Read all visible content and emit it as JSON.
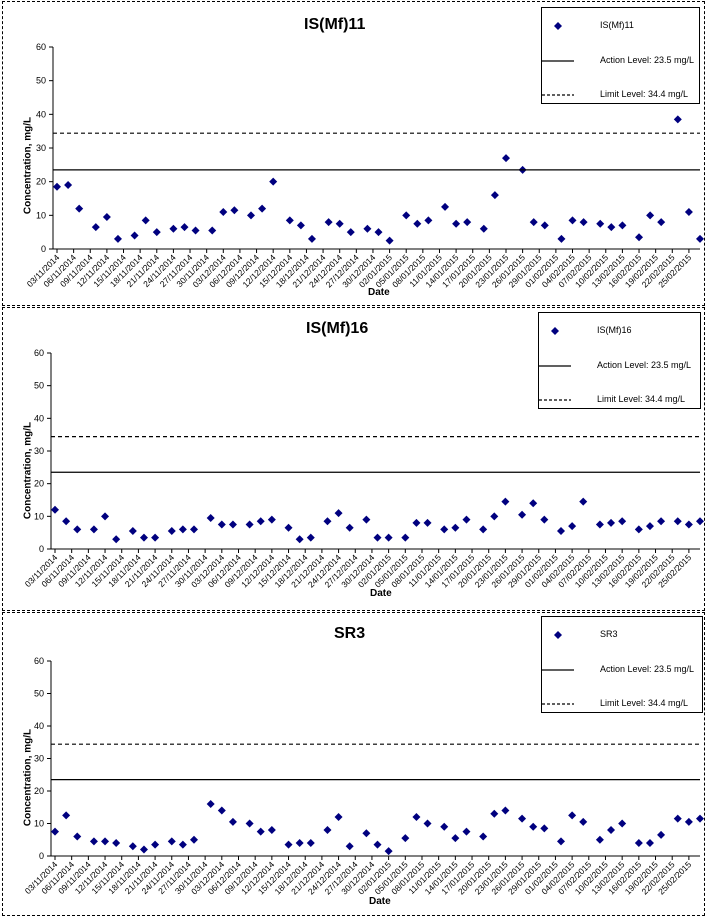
{
  "chart_data": [
    {
      "type": "scatter",
      "title": "IS(Mf)11",
      "xlabel": "Date",
      "ylabel": "Concentration, mg/L",
      "ylim": [
        0,
        60
      ],
      "yticks": [
        0,
        10,
        20,
        30,
        40,
        50,
        60
      ],
      "xlim": [
        "2014-11-03",
        "2015-02-27"
      ],
      "xtick_labels": [
        "03/11/2014",
        "06/11/2014",
        "09/11/2014",
        "12/11/2014",
        "15/11/2014",
        "18/11/2014",
        "21/11/2014",
        "24/11/2014",
        "27/11/2014",
        "30/11/2014",
        "03/12/2014",
        "06/12/2014",
        "09/12/2014",
        "12/12/2014",
        "15/12/2014",
        "18/12/2014",
        "21/12/2014",
        "24/12/2014",
        "27/12/2014",
        "30/12/2014",
        "02/01/2015",
        "05/01/2015",
        "08/01/2015",
        "11/01/2015",
        "14/01/2015",
        "17/01/2015",
        "20/01/2015",
        "23/01/2015",
        "26/01/2015",
        "29/01/2015",
        "01/02/2015",
        "04/02/2015",
        "07/02/2015",
        "10/02/2015",
        "13/02/2015",
        "16/02/2015",
        "19/02/2015",
        "22/02/2015",
        "25/02/2015"
      ],
      "legend_position": "top-right",
      "series": [
        {
          "name": "IS(Mf)11",
          "kind": "points",
          "color": "#00007f",
          "x": [
            "2014-11-03",
            "2014-11-05",
            "2014-11-07",
            "2014-11-10",
            "2014-11-12",
            "2014-11-14",
            "2014-11-17",
            "2014-11-19",
            "2014-11-21",
            "2014-11-24",
            "2014-11-26",
            "2014-11-28",
            "2014-12-01",
            "2014-12-03",
            "2014-12-05",
            "2014-12-08",
            "2014-12-10",
            "2014-12-12",
            "2014-12-15",
            "2014-12-17",
            "2014-12-19",
            "2014-12-22",
            "2014-12-24",
            "2014-12-26",
            "2014-12-29",
            "2014-12-31",
            "2015-01-02",
            "2015-01-05",
            "2015-01-07",
            "2015-01-09",
            "2015-01-12",
            "2015-01-14",
            "2015-01-16",
            "2015-01-19",
            "2015-01-21",
            "2015-01-23",
            "2015-01-26",
            "2015-01-28",
            "2015-01-30",
            "2015-02-02",
            "2015-02-04",
            "2015-02-06",
            "2015-02-09",
            "2015-02-11",
            "2015-02-13",
            "2015-02-16",
            "2015-02-18",
            "2015-02-20",
            "2015-02-23",
            "2015-02-25",
            "2015-02-27"
          ],
          "y": [
            18.5,
            19,
            12,
            6.5,
            9.5,
            3,
            4,
            8.5,
            5,
            6,
            6.5,
            5.5,
            5.5,
            11,
            11.5,
            10,
            12,
            20,
            8.5,
            7,
            3,
            8,
            7.5,
            5,
            6,
            5,
            2.5,
            10,
            7.5,
            8.5,
            12.5,
            7.5,
            8,
            6,
            16,
            27,
            23.5,
            8,
            7,
            3,
            8.5,
            8,
            7.5,
            6.5,
            7,
            3.5,
            10,
            8,
            38.5,
            11,
            3
          ]
        },
        {
          "name": "Action Level: 23.5 mg/L",
          "kind": "hline",
          "value": 23.5,
          "dash": "solid"
        },
        {
          "name": "Limit Level: 34.4 mg/L",
          "kind": "hline",
          "value": 34.4,
          "dash": "dashed"
        }
      ]
    },
    {
      "type": "scatter",
      "title": "IS(Mf)16",
      "xlabel": "Date",
      "ylabel": "Concentration, mg/L",
      "ylim": [
        0,
        60
      ],
      "yticks": [
        0,
        10,
        20,
        30,
        40,
        50,
        60
      ],
      "xlim": [
        "2014-11-03",
        "2015-02-27"
      ],
      "xtick_labels": [
        "03/11/2014",
        "06/11/2014",
        "09/11/2014",
        "12/11/2014",
        "15/11/2014",
        "18/11/2014",
        "21/11/2014",
        "24/11/2014",
        "27/11/2014",
        "30/11/2014",
        "03/12/2014",
        "06/12/2014",
        "09/12/2014",
        "12/12/2014",
        "15/12/2014",
        "18/12/2014",
        "21/12/2014",
        "24/12/2014",
        "27/12/2014",
        "30/12/2014",
        "02/01/2015",
        "05/01/2015",
        "08/01/2015",
        "11/01/2015",
        "14/01/2015",
        "17/01/2015",
        "20/01/2015",
        "23/01/2015",
        "26/01/2015",
        "29/01/2015",
        "01/02/2015",
        "04/02/2015",
        "07/02/2015",
        "10/02/2015",
        "13/02/2015",
        "16/02/2015",
        "19/02/2015",
        "22/02/2015",
        "25/02/2015"
      ],
      "legend_position": "top-right",
      "series": [
        {
          "name": "IS(Mf)16",
          "kind": "points",
          "color": "#00007f",
          "x": [
            "2014-11-03",
            "2014-11-05",
            "2014-11-07",
            "2014-11-10",
            "2014-11-12",
            "2014-11-14",
            "2014-11-17",
            "2014-11-19",
            "2014-11-21",
            "2014-11-24",
            "2014-11-26",
            "2014-11-28",
            "2014-12-01",
            "2014-12-03",
            "2014-12-05",
            "2014-12-08",
            "2014-12-10",
            "2014-12-12",
            "2014-12-15",
            "2014-12-17",
            "2014-12-19",
            "2014-12-22",
            "2014-12-24",
            "2014-12-26",
            "2014-12-29",
            "2014-12-31",
            "2015-01-02",
            "2015-01-05",
            "2015-01-07",
            "2015-01-09",
            "2015-01-12",
            "2015-01-14",
            "2015-01-16",
            "2015-01-19",
            "2015-01-21",
            "2015-01-23",
            "2015-01-26",
            "2015-01-28",
            "2015-01-30",
            "2015-02-02",
            "2015-02-04",
            "2015-02-06",
            "2015-02-09",
            "2015-02-11",
            "2015-02-13",
            "2015-02-16",
            "2015-02-18",
            "2015-02-20",
            "2015-02-23",
            "2015-02-25",
            "2015-02-27"
          ],
          "y": [
            12,
            8.5,
            6,
            6,
            10,
            3,
            5.5,
            3.5,
            3.5,
            5.5,
            6,
            6,
            9.5,
            7.5,
            7.5,
            7.5,
            8.5,
            9,
            6.5,
            3,
            3.5,
            8.5,
            11,
            6.5,
            9,
            3.5,
            3.5,
            3.5,
            8,
            8,
            6,
            6.5,
            9,
            6,
            10,
            14.5,
            10.5,
            14,
            9,
            5.5,
            7,
            14.5,
            7.5,
            8,
            8.5,
            6,
            7,
            8.5,
            8.5,
            7.5,
            8.5
          ]
        },
        {
          "name": "Action Level: 23.5 mg/L",
          "kind": "hline",
          "value": 23.5,
          "dash": "solid"
        },
        {
          "name": "Limit Level: 34.4 mg/L",
          "kind": "hline",
          "value": 34.4,
          "dash": "dashed"
        }
      ]
    },
    {
      "type": "scatter",
      "title": "SR3",
      "xlabel": "Date",
      "ylabel": "Concentration, mg/L",
      "ylim": [
        0,
        60
      ],
      "yticks": [
        0,
        10,
        20,
        30,
        40,
        50,
        60
      ],
      "xlim": [
        "2014-11-03",
        "2015-02-27"
      ],
      "xtick_labels": [
        "03/11/2014",
        "06/11/2014",
        "09/11/2014",
        "12/11/2014",
        "15/11/2014",
        "18/11/2014",
        "21/11/2014",
        "24/11/2014",
        "27/11/2014",
        "30/11/2014",
        "03/12/2014",
        "06/12/2014",
        "09/12/2014",
        "12/12/2014",
        "15/12/2014",
        "18/12/2014",
        "21/12/2014",
        "24/12/2014",
        "27/12/2014",
        "30/12/2014",
        "02/01/2015",
        "05/01/2015",
        "08/01/2015",
        "11/01/2015",
        "14/01/2015",
        "17/01/2015",
        "20/01/2015",
        "23/01/2015",
        "26/01/2015",
        "29/01/2015",
        "01/02/2015",
        "04/02/2015",
        "07/02/2015",
        "10/02/2015",
        "13/02/2015",
        "16/02/2015",
        "19/02/2015",
        "22/02/2015",
        "25/02/2015"
      ],
      "legend_position": "top-right",
      "series": [
        {
          "name": "SR3",
          "kind": "points",
          "color": "#00007f",
          "x": [
            "2014-11-03",
            "2014-11-05",
            "2014-11-07",
            "2014-11-10",
            "2014-11-12",
            "2014-11-14",
            "2014-11-17",
            "2014-11-19",
            "2014-11-21",
            "2014-11-24",
            "2014-11-26",
            "2014-11-28",
            "2014-12-01",
            "2014-12-03",
            "2014-12-05",
            "2014-12-08",
            "2014-12-10",
            "2014-12-12",
            "2014-12-15",
            "2014-12-17",
            "2014-12-19",
            "2014-12-22",
            "2014-12-24",
            "2014-12-26",
            "2014-12-29",
            "2014-12-31",
            "2015-01-02",
            "2015-01-05",
            "2015-01-07",
            "2015-01-09",
            "2015-01-12",
            "2015-01-14",
            "2015-01-16",
            "2015-01-19",
            "2015-01-21",
            "2015-01-23",
            "2015-01-26",
            "2015-01-28",
            "2015-01-30",
            "2015-02-02",
            "2015-02-04",
            "2015-02-06",
            "2015-02-09",
            "2015-02-11",
            "2015-02-13",
            "2015-02-16",
            "2015-02-18",
            "2015-02-20",
            "2015-02-23",
            "2015-02-25",
            "2015-02-27"
          ],
          "y": [
            7.5,
            12.5,
            6,
            4.5,
            4.5,
            4,
            3,
            2,
            3.5,
            4.5,
            3.5,
            5,
            16,
            14,
            10.5,
            10,
            7.5,
            8,
            3.5,
            4,
            4,
            8,
            12,
            3,
            7,
            3.5,
            1.5,
            5.5,
            12,
            10,
            9,
            5.5,
            7.5,
            6,
            13,
            14,
            11.5,
            9,
            8.5,
            4.5,
            12.5,
            10.5,
            5,
            8,
            10,
            4,
            4,
            6.5,
            11.5,
            10.5,
            11.5
          ]
        },
        {
          "name": "Action Level: 23.5 mg/L",
          "kind": "hline",
          "value": 23.5,
          "dash": "solid"
        },
        {
          "name": "Limit Level: 34.4 mg/L",
          "kind": "hline",
          "value": 34.4,
          "dash": "dashed"
        }
      ]
    }
  ]
}
